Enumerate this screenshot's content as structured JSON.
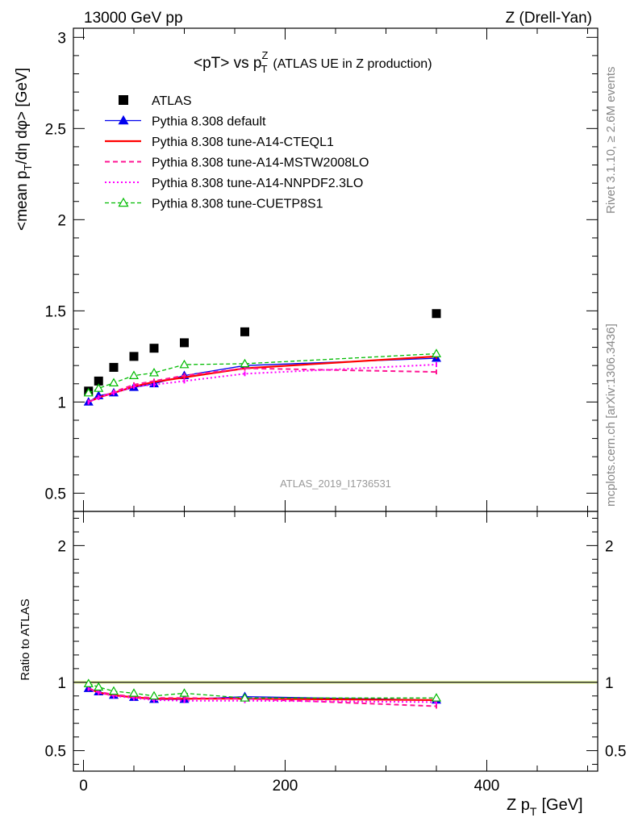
{
  "header": {
    "left": "13000 GeV pp",
    "right": "Z (Drell-Yan)"
  },
  "side_labels": {
    "rivet": "Rivet 3.1.10, ≥ 2.6M events",
    "mcplots": "mcplots.cern.ch [arXiv:1306.3436]"
  },
  "chart_data": {
    "type": "scatter",
    "title": {
      "main": "<pT> vs p",
      "sup": "Z",
      "sub": "T",
      "suffix": "(ATLAS UE in Z production)"
    },
    "analysis_id": "ATLAS_2019_I1736531",
    "ylabel_main": {
      "part1": "<mean p",
      "sub": "T",
      "part2": "/dη dφ> [GeV]"
    },
    "ylabel_ratio": "Ratio to ATLAS",
    "xlabel": {
      "part1": "Z p",
      "sub": "T",
      "part2": "[GeV]"
    },
    "xlim": [
      -10,
      510
    ],
    "ylim_main": [
      0.4,
      3.05
    ],
    "ylim_ratio": [
      0.35,
      2.25
    ],
    "x_ticks": [
      {
        "value": 0,
        "label": "0"
      },
      {
        "value": 200,
        "label": "200"
      },
      {
        "value": 400,
        "label": "400"
      }
    ],
    "y_ticks_main": [
      {
        "value": 0.5,
        "label": "0.5"
      },
      {
        "value": 1,
        "label": "1"
      },
      {
        "value": 1.5,
        "label": "1.5"
      },
      {
        "value": 2,
        "label": "2"
      },
      {
        "value": 2.5,
        "label": "2.5"
      },
      {
        "value": 3,
        "label": "3"
      }
    ],
    "y_ticks_ratio": [
      {
        "value": 0.5,
        "label": "0.5"
      },
      {
        "value": 1,
        "label": "1"
      },
      {
        "value": 2,
        "label": "2"
      }
    ],
    "x": [
      5,
      15,
      30,
      50,
      70,
      100,
      160,
      350
    ],
    "series": [
      {
        "name": "ATLAS",
        "color": "#000000",
        "style": "data",
        "values": [
          1.06,
          1.115,
          1.19,
          1.25,
          1.295,
          1.325,
          1.385,
          1.485
        ]
      },
      {
        "name": "Pythia 8.308 default",
        "color": "#0000ee",
        "style": "solid-triangle",
        "values": [
          1.0,
          1.035,
          1.05,
          1.08,
          1.1,
          1.145,
          1.2,
          1.24
        ],
        "ratio": [
          0.955,
          0.93,
          0.905,
          0.89,
          0.875,
          0.875,
          0.895,
          0.87
        ]
      },
      {
        "name": "Pythia 8.308 tune-A14-CTEQL1",
        "color": "#ff0000",
        "style": "thick-solid",
        "values": [
          1.0,
          1.025,
          1.05,
          1.085,
          1.11,
          1.135,
          1.185,
          1.25
        ],
        "ratio": [
          0.955,
          0.925,
          0.905,
          0.89,
          0.88,
          0.88,
          0.88,
          0.87
        ]
      },
      {
        "name": "Pythia 8.308 tune-A14-MSTW2008LO",
        "color": "#ff1493",
        "style": "dashed",
        "values": [
          1.0,
          1.025,
          1.055,
          1.095,
          1.115,
          1.145,
          1.185,
          1.165
        ],
        "ratio": [
          0.955,
          0.93,
          0.91,
          0.895,
          0.885,
          0.885,
          0.88,
          0.825
        ]
      },
      {
        "name": "Pythia 8.308 tune-A14-NNPDF2.3LO",
        "color": "#ff00ff",
        "style": "dotted",
        "values": [
          1.0,
          1.025,
          1.05,
          1.085,
          1.095,
          1.115,
          1.155,
          1.205
        ],
        "ratio": [
          0.955,
          0.925,
          0.9,
          0.885,
          0.87,
          0.865,
          0.865,
          0.855
        ]
      },
      {
        "name": "Pythia 8.308 tune-CUETP8S1",
        "color": "#00bb00",
        "style": "dashed-open-triangle",
        "values": [
          1.05,
          1.075,
          1.105,
          1.145,
          1.16,
          1.205,
          1.21,
          1.265
        ],
        "ratio": [
          0.99,
          0.965,
          0.935,
          0.92,
          0.9,
          0.92,
          0.885,
          0.885
        ]
      }
    ],
    "legend_position": "top-left"
  }
}
